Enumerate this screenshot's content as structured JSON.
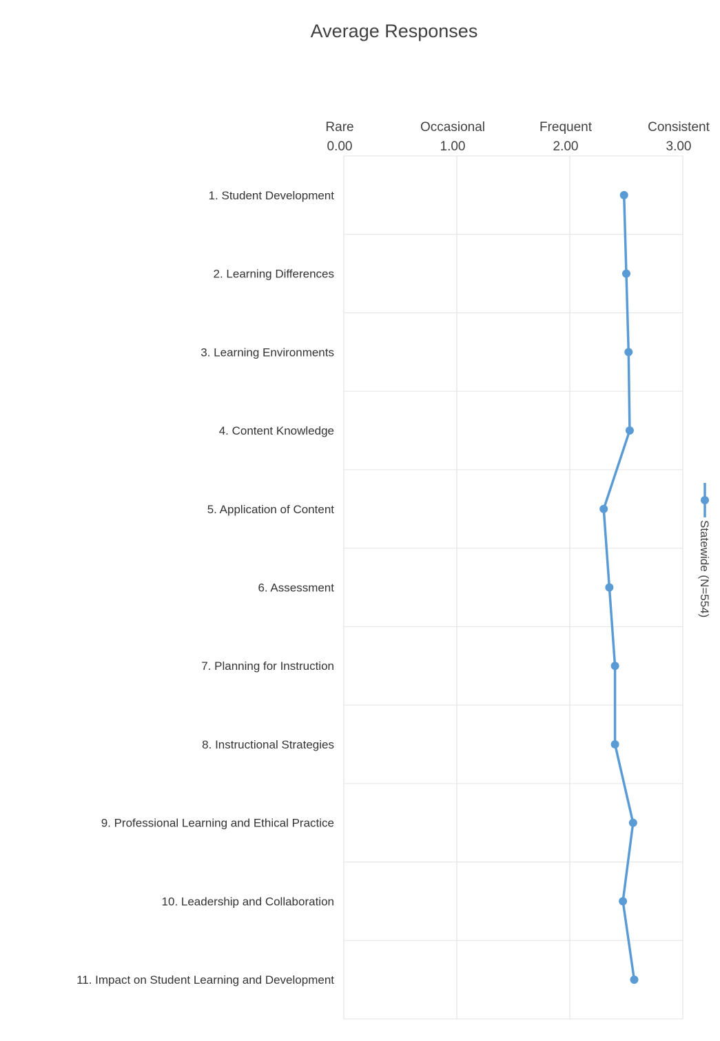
{
  "chart_data": {
    "type": "line",
    "orientation": "horizontal-values",
    "title": "Average Responses",
    "xlim": [
      0,
      3
    ],
    "x_ticks": [
      {
        "label": "Rare",
        "value_label": "0.00",
        "value": 0
      },
      {
        "label": "Occasional",
        "value_label": "1.00",
        "value": 1
      },
      {
        "label": "Frequent",
        "value_label": "2.00",
        "value": 2
      },
      {
        "label": "Consistent",
        "value_label": "3.00",
        "value": 3
      }
    ],
    "categories": [
      "1. Student Development",
      "2. Learning Differences",
      "3. Learning Environments",
      "4. Content Knowledge",
      "5. Application of Content",
      "6. Assessment",
      "7. Planning for Instruction",
      "8. Instructional Strategies",
      "9. Professional Learning and Ethical Practice",
      "10. Leadership and Collaboration",
      "11. Impact on Student Learning and Development"
    ],
    "series": [
      {
        "name": "Statewide (N=554)",
        "color": "#5b9bd5",
        "values": [
          2.48,
          2.5,
          2.52,
          2.53,
          2.3,
          2.35,
          2.4,
          2.4,
          2.56,
          2.47,
          2.57
        ]
      }
    ],
    "grid": true,
    "legend_position": "right, rotated vertical"
  }
}
